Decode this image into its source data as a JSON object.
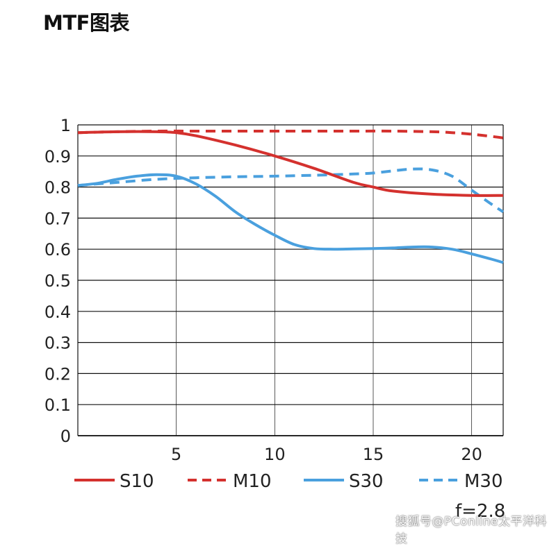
{
  "title": "MTF图表",
  "aperture_label": "f=2.8",
  "watermark": "搜狐号@PConline太平洋科技",
  "colors": {
    "red": "#d4312e",
    "blue": "#4aa0de",
    "grid": "#111111"
  },
  "chart_data": {
    "type": "line",
    "title": "MTF图表",
    "xlabel": "",
    "ylabel": "",
    "xlim": [
      0,
      21.6
    ],
    "ylim": [
      0,
      1
    ],
    "grid": true,
    "legend_position": "bottom",
    "x_ticks": [
      5,
      10,
      15,
      20
    ],
    "y_ticks": [
      0,
      0.1,
      0.2,
      0.3,
      0.4,
      0.5,
      0.6,
      0.7,
      0.8,
      0.9,
      1
    ],
    "y_tick_labels": [
      "0",
      "0.1",
      "0.2",
      "0.3",
      "0.4",
      "0.5",
      "0.6",
      "0.7",
      "0.8",
      "0.9",
      "1"
    ],
    "series": [
      {
        "name": "S10",
        "color": "#d4312e",
        "style": "solid",
        "x": [
          0,
          2,
          4,
          5,
          6,
          8,
          10,
          12,
          14,
          15,
          16,
          18,
          20,
          21.6
        ],
        "y": [
          0.975,
          0.978,
          0.978,
          0.975,
          0.965,
          0.935,
          0.9,
          0.86,
          0.815,
          0.8,
          0.787,
          0.777,
          0.773,
          0.773
        ]
      },
      {
        "name": "M10",
        "color": "#d4312e",
        "style": "dashed",
        "x": [
          0,
          2,
          4,
          6,
          8,
          10,
          12,
          14,
          16,
          18,
          19,
          20,
          21,
          21.6
        ],
        "y": [
          0.975,
          0.978,
          0.98,
          0.98,
          0.98,
          0.98,
          0.98,
          0.98,
          0.98,
          0.978,
          0.975,
          0.97,
          0.963,
          0.958
        ]
      },
      {
        "name": "S30",
        "color": "#4aa0de",
        "style": "solid",
        "x": [
          0,
          1,
          2,
          3,
          4,
          5,
          6,
          7,
          8,
          9,
          10,
          11,
          12,
          13,
          14,
          15,
          16,
          17,
          18,
          19,
          20,
          21,
          21.6
        ],
        "y": [
          0.805,
          0.812,
          0.825,
          0.835,
          0.84,
          0.835,
          0.81,
          0.77,
          0.72,
          0.68,
          0.645,
          0.615,
          0.602,
          0.6,
          0.601,
          0.602,
          0.604,
          0.607,
          0.607,
          0.6,
          0.585,
          0.568,
          0.557
        ]
      },
      {
        "name": "M30",
        "color": "#4aa0de",
        "style": "dashed",
        "x": [
          0,
          2,
          4,
          6,
          8,
          10,
          12,
          14,
          15,
          16,
          17,
          18,
          19,
          20,
          21,
          21.6
        ],
        "y": [
          0.805,
          0.815,
          0.825,
          0.83,
          0.833,
          0.835,
          0.838,
          0.842,
          0.845,
          0.852,
          0.858,
          0.855,
          0.835,
          0.79,
          0.745,
          0.72
        ]
      }
    ]
  }
}
